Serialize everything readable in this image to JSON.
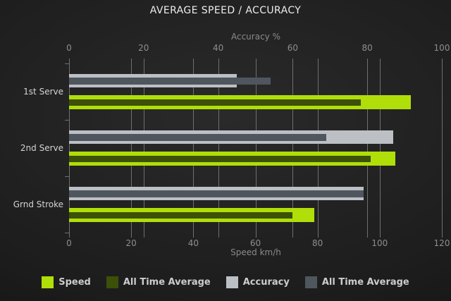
{
  "title": "AVERAGE SPEED / ACCURACY",
  "colors": {
    "background_center": "#2a2a2a",
    "background_edge": "#0e0e0e",
    "grid": "#6f6f6f",
    "axis_text": "#8e8e8e",
    "category_text": "#d4d4d4",
    "title_text": "#ececec",
    "legend_text": "#cccccc",
    "speed": "#b0de09",
    "speed_avg": "#3c5008",
    "accuracy": "#bcc0c5",
    "accuracy_avg": "#50565e"
  },
  "chart_data": {
    "type": "bar",
    "orientation": "horizontal",
    "title": "AVERAGE SPEED / ACCURACY",
    "categories": [
      "1st Serve",
      "2nd Serve",
      "Grnd Stroke"
    ],
    "series": [
      {
        "name": "Speed",
        "axis": "bottom",
        "color": "#b0de09",
        "values": [
          110,
          105,
          79
        ]
      },
      {
        "name": "All Time Average",
        "axis": "bottom",
        "color": "#3c5008",
        "values": [
          94,
          97,
          72
        ]
      },
      {
        "name": "Accuracy",
        "axis": "top",
        "color": "#bcc0c5",
        "values": [
          45,
          87,
          79
        ]
      },
      {
        "name": "All Time Average",
        "axis": "top",
        "color": "#50565e",
        "values": [
          54,
          69,
          79
        ]
      }
    ],
    "axes": {
      "top": {
        "title": "Accuracy %",
        "min": 0,
        "max": 100,
        "ticks": [
          0,
          20,
          40,
          60,
          80,
          100
        ]
      },
      "bottom": {
        "title": "Speed km/h",
        "min": 0,
        "max": 120,
        "ticks": [
          0,
          20,
          40,
          60,
          80,
          100,
          120
        ]
      }
    },
    "grid": true,
    "legend_position": "bottom"
  }
}
